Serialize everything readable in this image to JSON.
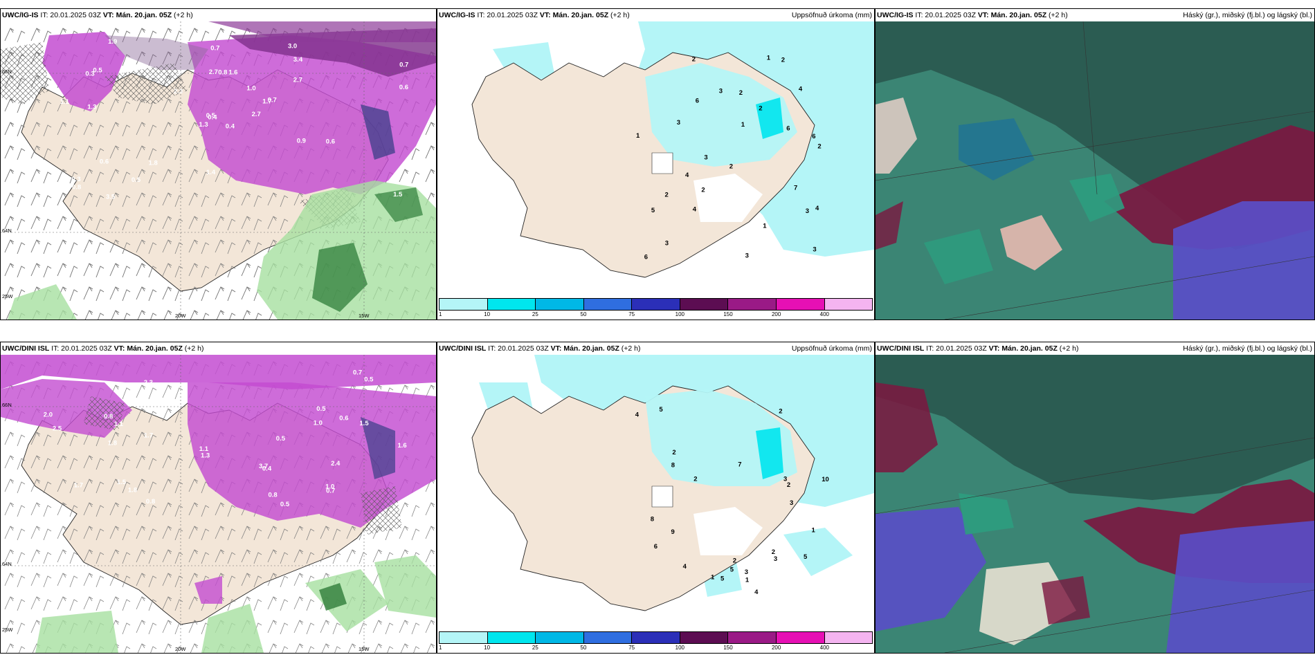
{
  "rows": [
    {
      "model": "UWC/IG-IS",
      "headers": [
        {
          "model": "UWC/IG-IS",
          "it": " IT: 20.01.2025 03Z ",
          "vt": "VT: Mán. 20.jan. 05Z",
          "lead": " (+2 h)",
          "right": ""
        },
        {
          "model": "UWC/IG-IS",
          "it": " IT: 20.01.2025 03Z ",
          "vt": "VT: Mán. 20.jan. 05Z",
          "lead": " (+2 h)",
          "right": "Uppsöfnuð úrkoma (mm)"
        },
        {
          "model": "UWC/IG-IS",
          "it": " IT: 20.01.2025 03Z ",
          "vt": "VT: Mán. 20.jan. 05Z",
          "lead": " (+2 h)",
          "right": "Háský (gr.), miðský (fj.bl.) og lágský (bl.)"
        }
      ]
    },
    {
      "model": "UWC/DINI ISL",
      "headers": [
        {
          "model": "UWC/DINI ISL",
          "it": " IT: 20.01.2025 03Z ",
          "vt": "VT: Mán. 20.jan. 05Z",
          "lead": " (+2 h)",
          "right": ""
        },
        {
          "model": "UWC/DINI ISL",
          "it": " IT: 20.01.2025 03Z ",
          "vt": "VT: Mán. 20.jan. 05Z",
          "lead": " (+2 h)",
          "right": "Uppsöfnuð úrkoma (mm)"
        },
        {
          "model": "UWC/DINI ISL",
          "it": " IT: 20.01.2025 03Z ",
          "vt": "VT: Mán. 20.jan. 05Z",
          "lead": " (+2 h)",
          "right": "Háský (gr.), miðský (fj.bl.) og lágský (bl.)"
        }
      ]
    }
  ],
  "axis_ticks": {
    "w20": "20W",
    "w15": "15W",
    "n64": "64N",
    "n66": "66N",
    "w25": "25W"
  },
  "precip_colorbar": {
    "ticks": [
      "1",
      "10",
      "25",
      "50",
      "75",
      "100",
      "150",
      "200",
      "400"
    ],
    "colors": [
      "#b4f5f7",
      "#00e6ee",
      "#00b8e6",
      "#2f6ee0",
      "#2b2fb8",
      "#5c0d52",
      "#9a1a86",
      "#e610b4",
      "#f4b4f0"
    ]
  },
  "colors": {
    "land": "#f3e6d8",
    "snow_purple": "#c34cd1",
    "rain_green": "#3fa34a",
    "cloud_dark": "#2b5c52",
    "cloud_mid": "#3d8a78",
    "cloud_red": "#7c1640",
    "cloud_blue": "#5a4ec8",
    "sea_cyan": "#b4f5f7"
  },
  "wind_values": {
    "top": [
      "0.4",
      "0.3",
      "0.4",
      "0.3",
      "1.7",
      "1.8",
      "3.0",
      "1.6",
      "3.4",
      "2.7",
      "1.9",
      "1.5",
      "1.3",
      "0.7",
      "1.3",
      "2.7",
      "3.5",
      "2.7",
      "1.0",
      "0.6",
      "2.3",
      "0.8",
      "0.5",
      "0.8",
      "0.7",
      "0.6",
      "0.5",
      "0.7",
      "1.1",
      "0.9",
      "0.6",
      "0.5",
      "1.4"
    ],
    "bottom": [
      "0.5",
      "2.3",
      "1.5",
      "0.8",
      "0.6",
      "0.8",
      "1.6",
      "1.7",
      "1.3",
      "1.8",
      "1.7",
      "2.0",
      "1.1",
      "3.7",
      "1.0",
      "0.7",
      "2.5",
      "0.5",
      "2.4",
      "1.5",
      "1.0",
      "0.4",
      "0.8",
      "0.7",
      "0.5",
      "0.5",
      "1.8",
      "1.1"
    ]
  },
  "precip_values": {
    "top": [
      "6",
      "6",
      "2",
      "2",
      "3",
      "4",
      "2",
      "1",
      "3",
      "4",
      "3",
      "7",
      "6",
      "4",
      "5",
      "2",
      "4",
      "1",
      "2",
      "3",
      "3",
      "2",
      "3",
      "2",
      "1",
      "2",
      "6",
      "1",
      "3"
    ],
    "bottom": [
      "1",
      "2",
      "7",
      "4",
      "10",
      "6",
      "5",
      "8",
      "3",
      "2",
      "9",
      "5",
      "5",
      "4",
      "2",
      "1",
      "2",
      "3",
      "1",
      "2",
      "5",
      "3",
      "8",
      "2",
      "3",
      "4"
    ]
  }
}
